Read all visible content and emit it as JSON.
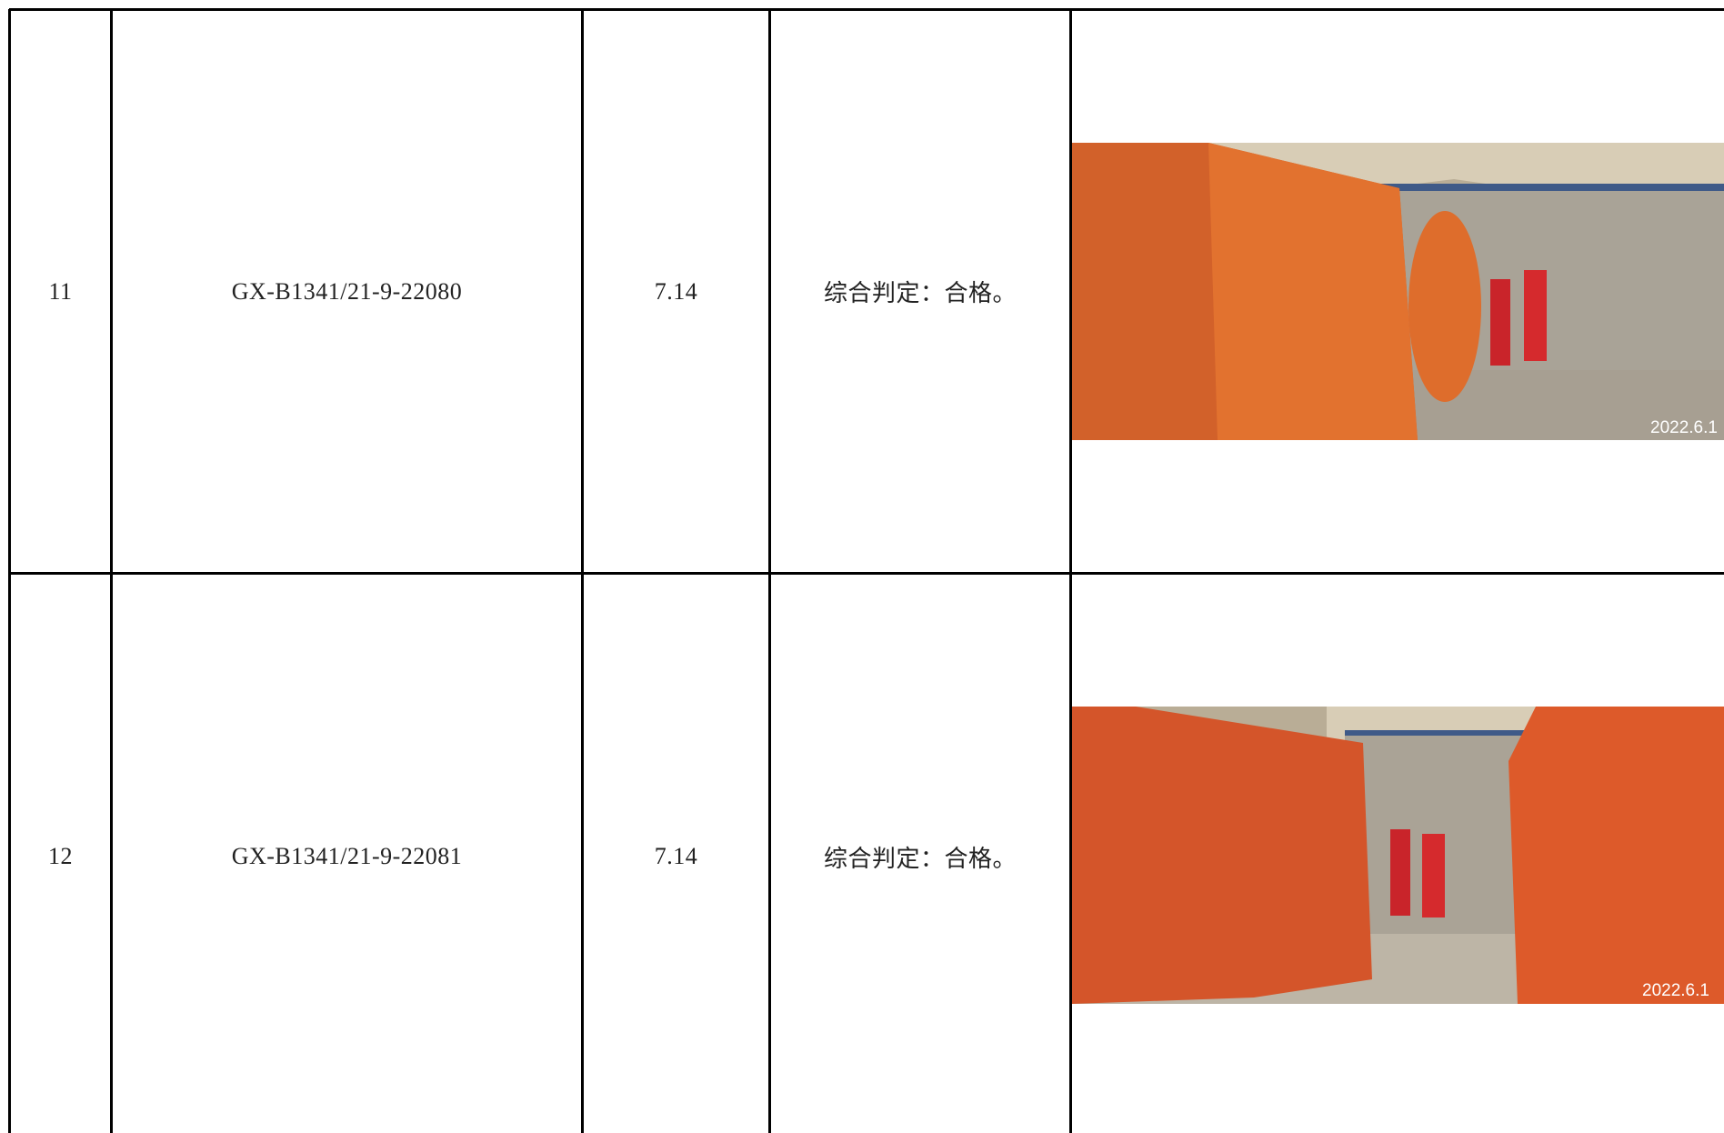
{
  "table": {
    "rows": [
      {
        "no": "11",
        "code": "GX-B1341/21-9-22080",
        "value": "7.14",
        "result": "综合判定：合格。",
        "photo_stamp": "2022.6.1"
      },
      {
        "no": "12",
        "code": "GX-B1341/21-9-22081",
        "value": "7.14",
        "result": "综合判定：合格。",
        "photo_stamp": "2022.6.1"
      }
    ]
  }
}
